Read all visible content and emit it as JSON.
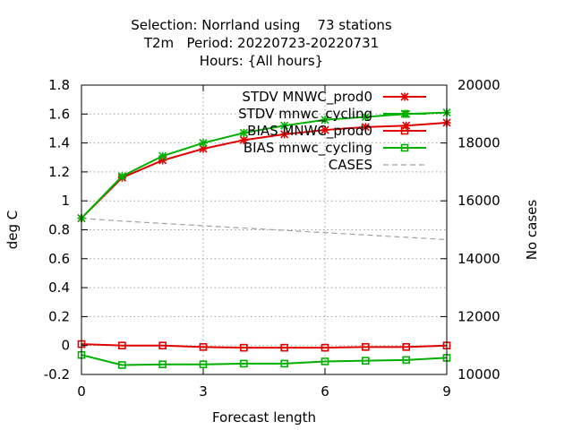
{
  "chart_data": {
    "type": "line",
    "title_lines": [
      "Selection: Norrland using    73 stations",
      "T2m   Period: 20220723-20220731",
      "Hours: {All hours}"
    ],
    "xlabel": "Forecast length",
    "ylabel": "deg C",
    "y2label": "No cases",
    "xlim": [
      0,
      9
    ],
    "ylim": [
      -0.2,
      1.8
    ],
    "y2lim": [
      10000,
      20000
    ],
    "x_ticks": [
      0,
      3,
      6,
      9
    ],
    "y_ticks": [
      -0.2,
      0,
      0.2,
      0.4,
      0.6,
      0.8,
      1,
      1.2,
      1.4,
      1.6,
      1.8
    ],
    "y_tick_labels": [
      "-0.2",
      "0",
      "0.2",
      "0.4",
      "0.6",
      "0.8",
      "1",
      "1.2",
      "1.4",
      "1.6",
      "1.8"
    ],
    "y2_ticks": [
      10000,
      12000,
      14000,
      16000,
      18000,
      20000
    ],
    "grid": true,
    "legend_position": "top-right",
    "x": [
      0,
      1,
      2,
      3,
      4,
      5,
      6,
      7,
      8,
      9
    ],
    "series": [
      {
        "name": "STDV MNWC_prod0",
        "axis": "y",
        "marker": "star",
        "color": "#e00000",
        "values": [
          0.88,
          1.16,
          1.28,
          1.36,
          1.42,
          1.46,
          1.49,
          1.51,
          1.52,
          1.54
        ]
      },
      {
        "name": "STDV mnwc_cycling",
        "axis": "y",
        "marker": "star",
        "color": "#00b000",
        "values": [
          0.88,
          1.17,
          1.31,
          1.4,
          1.47,
          1.52,
          1.56,
          1.58,
          1.6,
          1.61
        ]
      },
      {
        "name": "BIAS MNWC_prod0",
        "axis": "y",
        "marker": "square",
        "color": "#e00000",
        "values": [
          0.01,
          0.0,
          0.0,
          -0.01,
          -0.015,
          -0.015,
          -0.015,
          -0.01,
          -0.01,
          0.0
        ]
      },
      {
        "name": "BIAS mnwc_cycling",
        "axis": "y",
        "marker": "square",
        "color": "#00b000",
        "values": [
          -0.065,
          -0.135,
          -0.13,
          -0.13,
          -0.125,
          -0.125,
          -0.11,
          -0.105,
          -0.1,
          -0.085
        ]
      },
      {
        "name": "CASES",
        "axis": "y2",
        "marker": "none",
        "color": "#a0a0a0",
        "dashed": true,
        "values": [
          15400,
          15300,
          15220,
          15140,
          15060,
          14980,
          14900,
          14820,
          14740,
          14660
        ]
      }
    ]
  }
}
